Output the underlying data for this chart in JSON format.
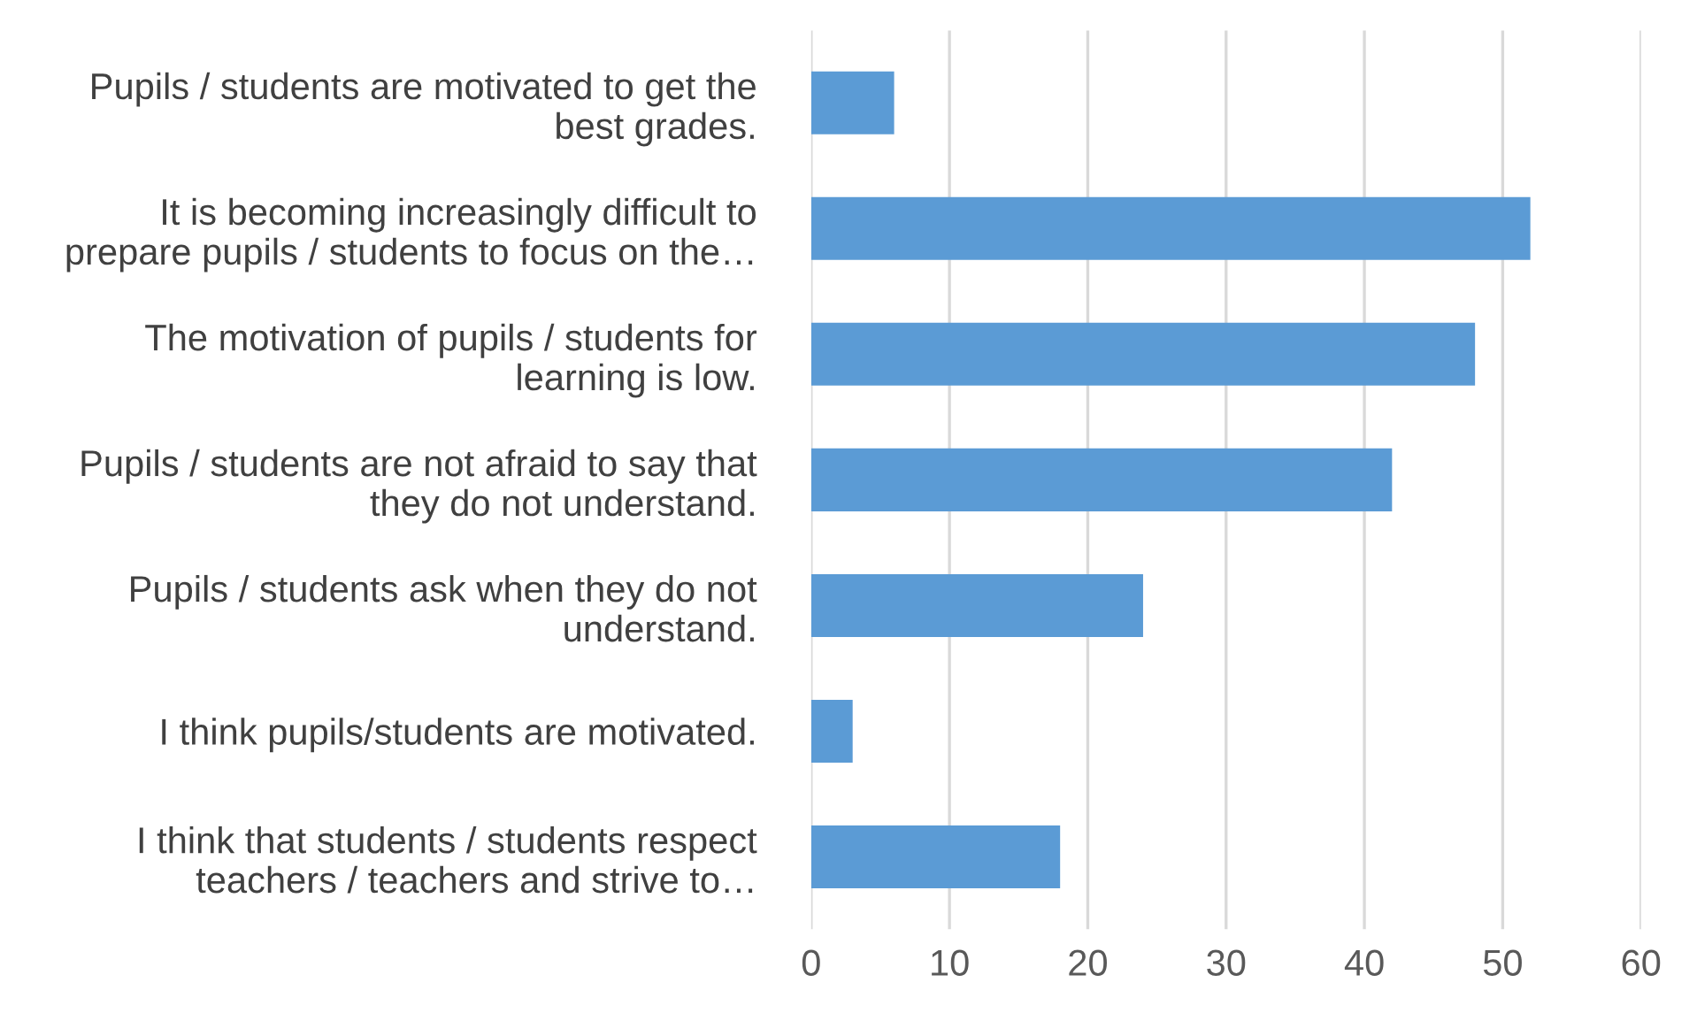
{
  "chart_data": {
    "type": "bar",
    "orientation": "horizontal",
    "categories": [
      "Pupils / students are motivated to get the\nbest grades.",
      "It is becoming increasingly difficult to\nprepare pupils / students to focus on the…",
      "The motivation of pupils / students for\nlearning is low.",
      "Pupils / students are not afraid to say that\nthey do not understand.",
      "Pupils / students ask when they do not\nunderstand.",
      "I think pupils/students are motivated.",
      "I think that students / students respect\nteachers / teachers and strive to…"
    ],
    "values": [
      6,
      52,
      48,
      42,
      24,
      3,
      18
    ],
    "color": "#5b9bd5",
    "xlim": [
      0,
      60
    ],
    "xticks": [
      0,
      10,
      20,
      30,
      40,
      50,
      60
    ],
    "grid": "x",
    "legend": false
  }
}
